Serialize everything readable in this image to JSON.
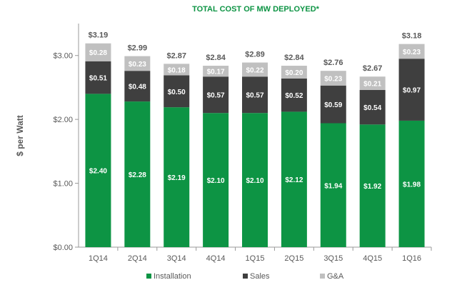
{
  "chart_data": {
    "type": "bar",
    "stacked": true,
    "title": "TOTAL COST OF MW DEPLOYED*",
    "ylabel": "$ per Watt",
    "xlabel": "",
    "ylim": [
      0,
      3.5
    ],
    "yticks": [
      0,
      1,
      2,
      3
    ],
    "ytick_labels": [
      "$0.00",
      "$1.00",
      "$2.00",
      "$3.00"
    ],
    "grid": false,
    "legend_position": "bottom",
    "categories": [
      "1Q14",
      "2Q14",
      "3Q14",
      "4Q14",
      "1Q15",
      "2Q15",
      "3Q15",
      "4Q15",
      "1Q16"
    ],
    "series": [
      {
        "name": "Installation",
        "color": "#0d9444",
        "values": [
          2.4,
          2.28,
          2.19,
          2.1,
          2.1,
          2.12,
          1.94,
          1.92,
          1.98
        ],
        "labels": [
          "$2.40",
          "$2.28",
          "$2.19",
          "$2.10",
          "$2.10",
          "$2.12",
          "$1.94",
          "$1.92",
          "$1.98"
        ]
      },
      {
        "name": "Sales",
        "color": "#3f3f3f",
        "values": [
          0.51,
          0.48,
          0.5,
          0.57,
          0.57,
          0.52,
          0.59,
          0.54,
          0.97
        ],
        "labels": [
          "$0.51",
          "$0.48",
          "$0.50",
          "$0.57",
          "$0.57",
          "$0.52",
          "$0.59",
          "$0.54",
          "$0.97"
        ]
      },
      {
        "name": "G&A",
        "color": "#c0c0c0",
        "values": [
          0.28,
          0.23,
          0.18,
          0.17,
          0.22,
          0.2,
          0.23,
          0.21,
          0.23
        ],
        "labels": [
          "$0.28",
          "$0.23",
          "$0.18",
          "$0.17",
          "$0.22",
          "$0.20",
          "$0.23",
          "$0.21",
          "$0.23"
        ]
      }
    ],
    "totals": [
      3.19,
      2.99,
      2.87,
      2.84,
      2.89,
      2.84,
      2.76,
      2.67,
      3.18
    ],
    "total_labels": [
      "$3.19",
      "$2.99",
      "$2.87",
      "$2.84",
      "$2.89",
      "$2.84",
      "$2.76",
      "$2.67",
      "$3.18"
    ],
    "colors": {
      "title": "#0d9444",
      "axis": "#999999",
      "text": "#595959"
    }
  }
}
